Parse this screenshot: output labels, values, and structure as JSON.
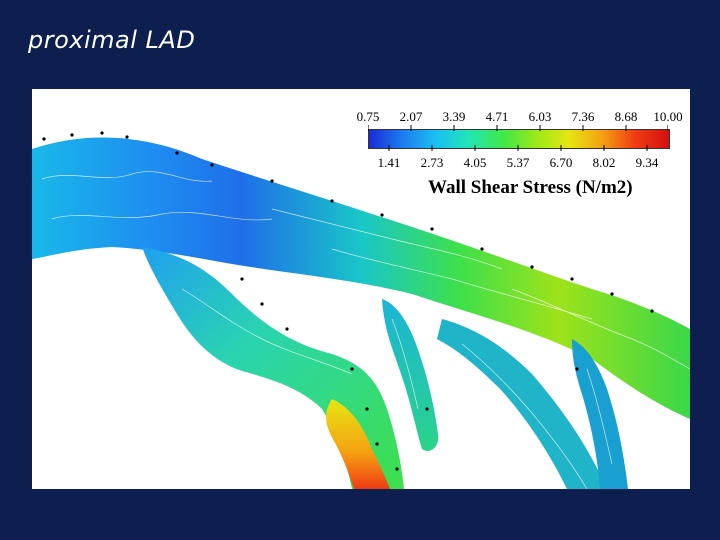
{
  "slide": {
    "title": "proximal LAD"
  },
  "legend": {
    "title": "Wall Shear Stress (N/m2)",
    "top_values": [
      "0.75",
      "2.07",
      "3.39",
      "4.71",
      "6.03",
      "7.36",
      "8.68",
      "10.00"
    ],
    "bottom_values": [
      "1.41",
      "2.73",
      "4.05",
      "5.37",
      "6.70",
      "8.02",
      "9.34"
    ],
    "colormap": [
      "#1a2bd6",
      "#1d7cf0",
      "#19c0f2",
      "#22e6b4",
      "#3ee84a",
      "#9ae81a",
      "#e6e612",
      "#f5a012",
      "#ef3a12",
      "#d41010"
    ]
  }
}
